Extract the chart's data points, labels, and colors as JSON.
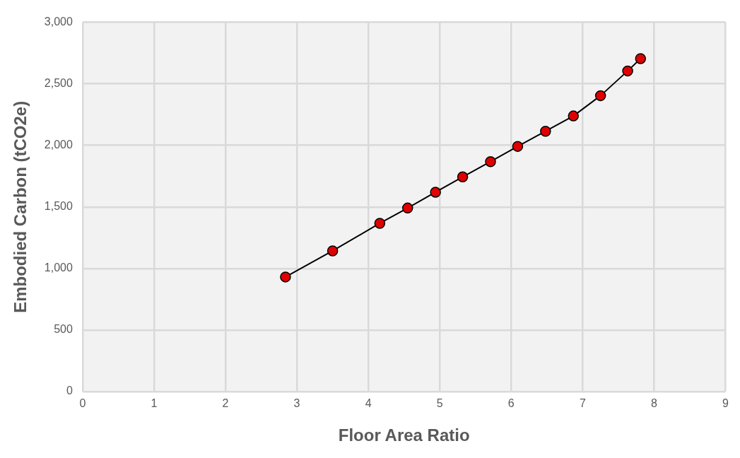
{
  "chart_data": {
    "type": "line",
    "xlabel": "Floor Area Ratio",
    "ylabel": "Embodied Carbon (tCO2e)",
    "x": [
      2.84,
      3.5,
      4.16,
      4.55,
      4.94,
      5.32,
      5.71,
      6.09,
      6.48,
      6.87,
      7.25,
      7.63,
      7.81
    ],
    "series": [
      {
        "color": "#e00000",
        "values": [
          931,
          1143,
          1367,
          1491,
          1620,
          1744,
          1868,
          1992,
          2115,
          2239,
          2404,
          2605,
          2705
        ]
      }
    ],
    "xlim": [
      0,
      9
    ],
    "xticks": [
      0,
      1,
      2,
      3,
      4,
      5,
      6,
      7,
      8,
      9
    ],
    "ylim": [
      0,
      3000
    ],
    "yticks": [
      0,
      500,
      {
        "value": 1000,
        "label": "1,000"
      },
      {
        "value": 1500,
        "label": "1,500"
      },
      {
        "value": 2000,
        "label": "2,000"
      },
      {
        "value": 2500,
        "label": "2,500"
      },
      {
        "value": 3000,
        "label": "3,000"
      }
    ],
    "grid": true,
    "legend": false,
    "marker": "circle",
    "line_style": "solid"
  }
}
